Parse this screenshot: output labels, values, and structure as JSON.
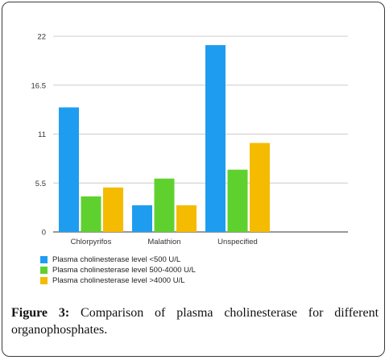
{
  "caption": {
    "label": "Figure 3:",
    "text": "Comparison of plasma cholinesterase for different organophosphates."
  },
  "chart_data": {
    "type": "bar",
    "categories": [
      "Chlorpyrifos",
      "Malathion",
      "Unspecified"
    ],
    "series": [
      {
        "name": "Plasma cholinesterase level <500 U/L",
        "color": "#1e9df0",
        "values": [
          14,
          3,
          21
        ]
      },
      {
        "name": "Plasma cholinesterase level 500-4000 U/L",
        "color": "#5fd12f",
        "values": [
          4,
          6,
          7
        ]
      },
      {
        "name": "Plasma cholinesterase level >4000 U/L",
        "color": "#f5bb00",
        "values": [
          5,
          3,
          10
        ]
      }
    ],
    "yticks": [
      "0",
      "5.5",
      "11",
      "16.5",
      "22"
    ],
    "ylim": [
      0,
      22
    ],
    "grid": true,
    "legend_position": "bottom-left"
  }
}
